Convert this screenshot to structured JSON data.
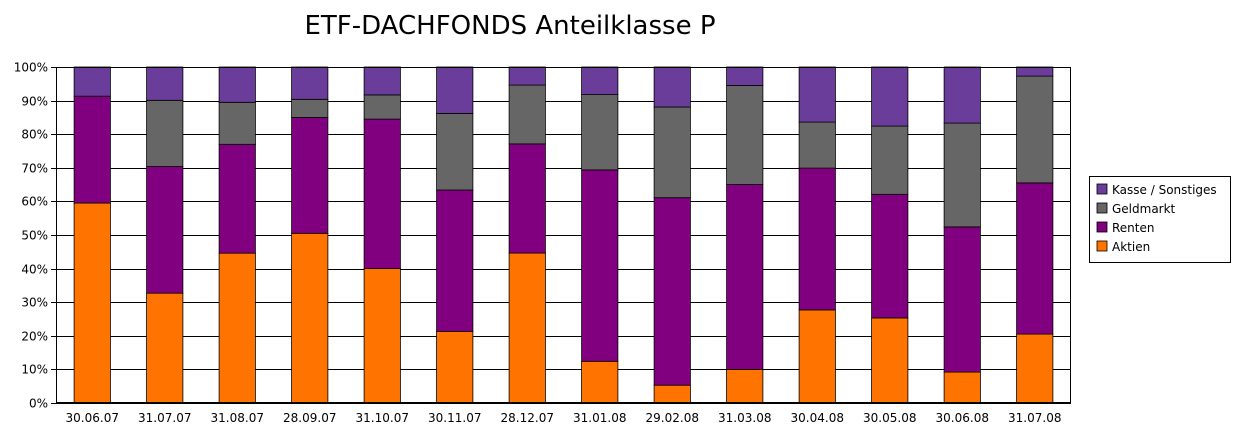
{
  "chart_data": {
    "type": "bar",
    "stacked": true,
    "title": "ETF-DACHFONDS Anteilklasse P",
    "xlabel": "",
    "ylabel": "",
    "ylim": [
      0,
      100
    ],
    "y_ticks": [
      "0%",
      "10%",
      "20%",
      "30%",
      "40%",
      "50%",
      "60%",
      "70%",
      "80%",
      "90%",
      "100%"
    ],
    "grid": true,
    "legend_position": "right",
    "categories": [
      "30.06.07",
      "31.07.07",
      "31.08.07",
      "28.09.07",
      "31.10.07",
      "30.11.07",
      "28.12.07",
      "31.01.08",
      "29.02.08",
      "31.03.08",
      "30.04.08",
      "30.05.08",
      "30.06.08",
      "31.07.08"
    ],
    "series": [
      {
        "name": "Aktien",
        "color": "#ff7300",
        "values": [
          59.5,
          32.7,
          44.6,
          50.5,
          40.0,
          21.3,
          44.6,
          12.4,
          5.3,
          10.0,
          27.7,
          25.3,
          9.2,
          20.5
        ]
      },
      {
        "name": "Renten",
        "color": "#800080",
        "values": [
          31.8,
          37.7,
          32.4,
          34.5,
          44.5,
          42.1,
          32.5,
          57.0,
          55.8,
          55.0,
          42.2,
          36.8,
          43.2,
          45.0
        ]
      },
      {
        "name": "Geldmarkt",
        "color": "#666666",
        "values": [
          0,
          19.7,
          12.5,
          5.4,
          7.2,
          22.8,
          17.5,
          22.4,
          27.0,
          29.5,
          13.7,
          20.3,
          30.9,
          31.8
        ]
      },
      {
        "name": "Kasse / Sonstiges",
        "color": "#6a3d9a",
        "values": [
          8.7,
          9.9,
          10.5,
          9.6,
          8.3,
          13.8,
          5.4,
          8.2,
          11.9,
          5.5,
          16.4,
          17.6,
          16.7,
          2.7
        ]
      }
    ],
    "legend_order": [
      "Kasse / Sonstiges",
      "Geldmarkt",
      "Renten",
      "Aktien"
    ]
  }
}
